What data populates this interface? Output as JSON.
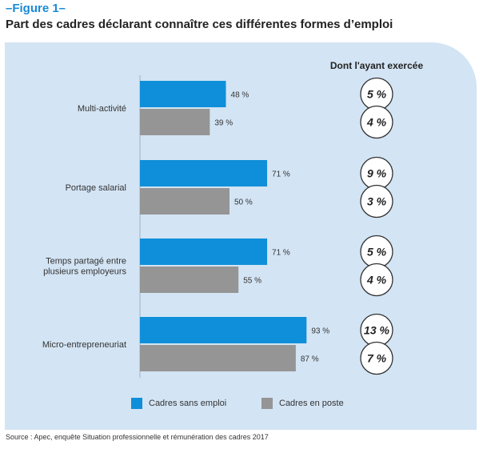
{
  "figure_label": "–Figure 1–",
  "title": "Part des cadres déclarant connaître ces différentes formes d’emploi",
  "source": "Source : Apec, enquête Situation professionnelle et rémunération des cadres 2017",
  "colors": {
    "panel": "#d3e4f4",
    "accent": "#1a8ad6",
    "series1": "#0f8fd9",
    "series2": "#959595"
  },
  "chart_data": {
    "type": "bar",
    "orientation": "horizontal",
    "unit": "%",
    "categories": [
      "Multi-activité",
      "Portage salarial",
      "Temps partagé entre plusieurs employeurs",
      "Micro-entrepreneuriat"
    ],
    "category_lines": [
      [
        "Multi-activité"
      ],
      [
        "Portage salarial"
      ],
      [
        "Temps partagé entre",
        "plusieurs employeurs"
      ],
      [
        "Micro-entrepreneuriat"
      ]
    ],
    "series": [
      {
        "name": "Cadres sans emploi",
        "values": [
          48,
          71,
          71,
          93
        ],
        "labels": [
          "48 %",
          "71 %",
          "71 %",
          "93 %"
        ]
      },
      {
        "name": "Cadres en poste",
        "values": [
          39,
          50,
          55,
          87
        ],
        "labels": [
          "39 %",
          "50 %",
          "55 %",
          "87 %"
        ]
      }
    ],
    "side_title": "Dont l'ayant exercée",
    "side_values": [
      [
        "5 %",
        "4 %"
      ],
      [
        "9 %",
        "3 %"
      ],
      [
        "5 %",
        "4 %"
      ],
      [
        "13 %",
        "7 %"
      ]
    ],
    "legend_position": "bottom",
    "grid": false
  }
}
